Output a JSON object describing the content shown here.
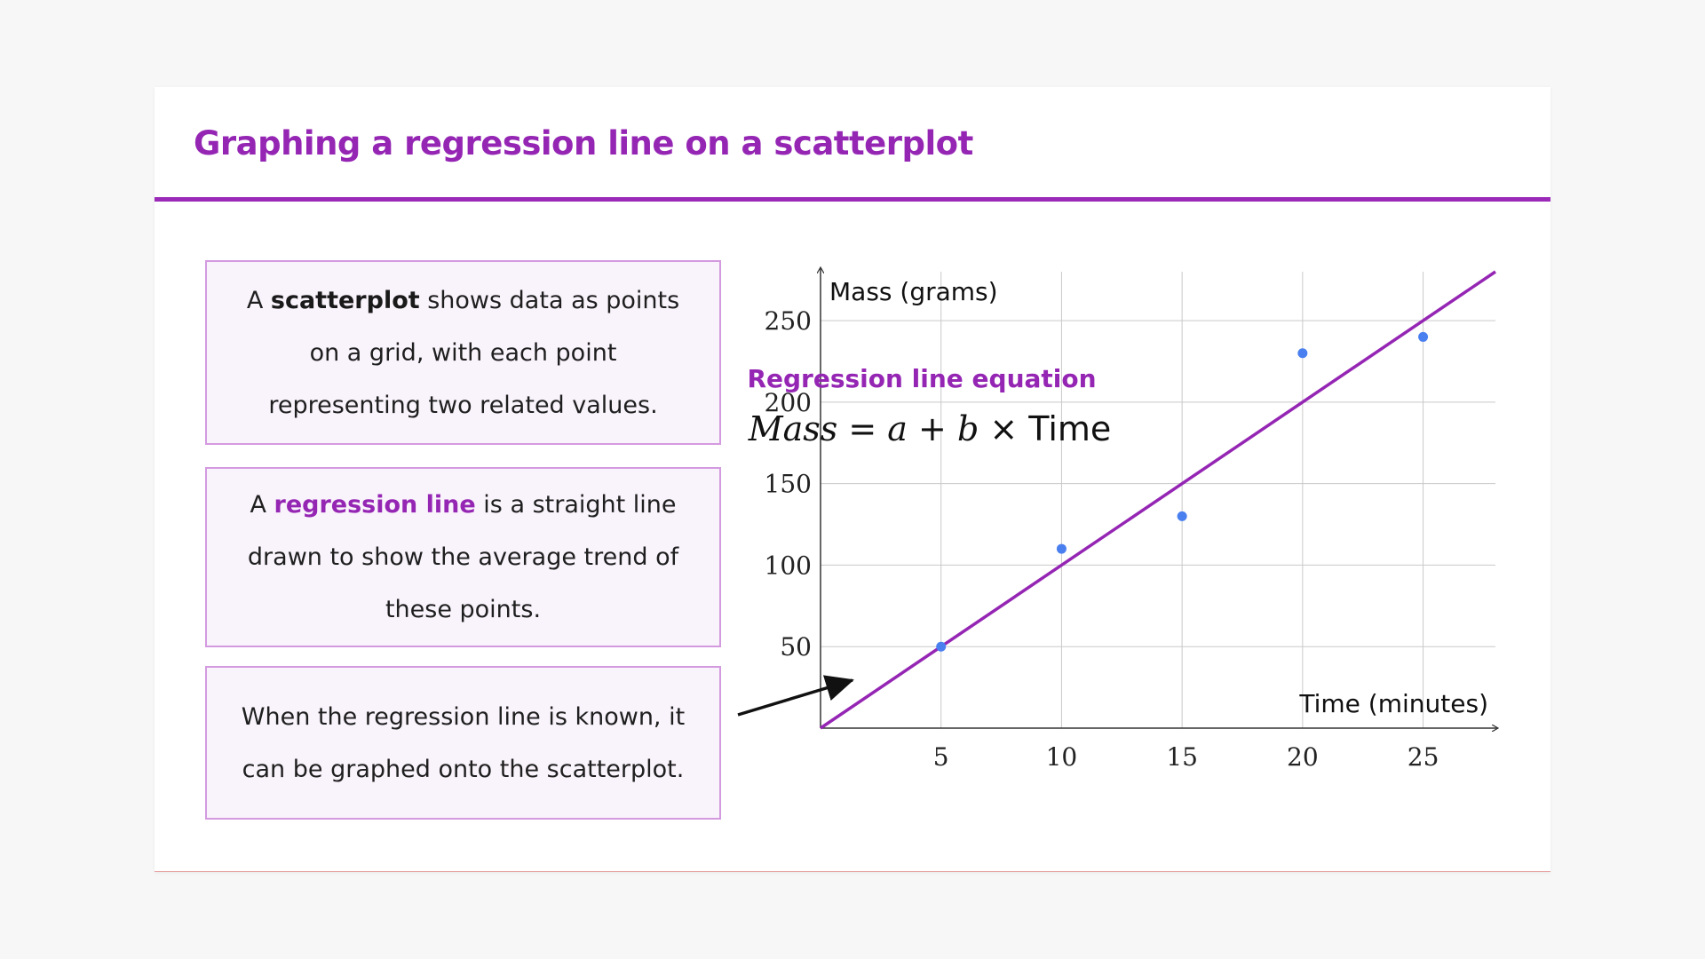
{
  "title": "Graphing a regression line on a scatterplot",
  "boxes": {
    "box1": {
      "pre": "A ",
      "key": "scatterplot",
      "post": " shows data as points on a grid, with each point representing two related values."
    },
    "box2": {
      "pre": "A ",
      "key": "regression line",
      "post": " is a straight line drawn to show the average trend of these points."
    },
    "box3": {
      "text": "When the regression line is known, it can be graphed onto the scatterplot."
    }
  },
  "equation": {
    "label": "Regression line equation",
    "lhs": "Mass",
    "eq": " = ",
    "a": "a",
    "plus": " + ",
    "b": "b",
    "times": " × ",
    "rhs": "Time"
  },
  "colors": {
    "accent": "#9526b4",
    "points": "#4a7ff0",
    "line": "#9526b4"
  },
  "chart_data": {
    "type": "scatter",
    "title": "",
    "xlabel": "Time (minutes)",
    "ylabel": "Mass (grams)",
    "xlim": [
      0,
      28
    ],
    "ylim": [
      0,
      280
    ],
    "xticks": [
      5,
      10,
      15,
      20,
      25
    ],
    "yticks": [
      50,
      100,
      150,
      200,
      250
    ],
    "grid": true,
    "points": [
      {
        "x": 5,
        "y": 50
      },
      {
        "x": 10,
        "y": 110
      },
      {
        "x": 15,
        "y": 130
      },
      {
        "x": 20,
        "y": 230
      },
      {
        "x": 25,
        "y": 240
      }
    ],
    "regression_line": {
      "intercept": 0,
      "slope": 10
    }
  }
}
